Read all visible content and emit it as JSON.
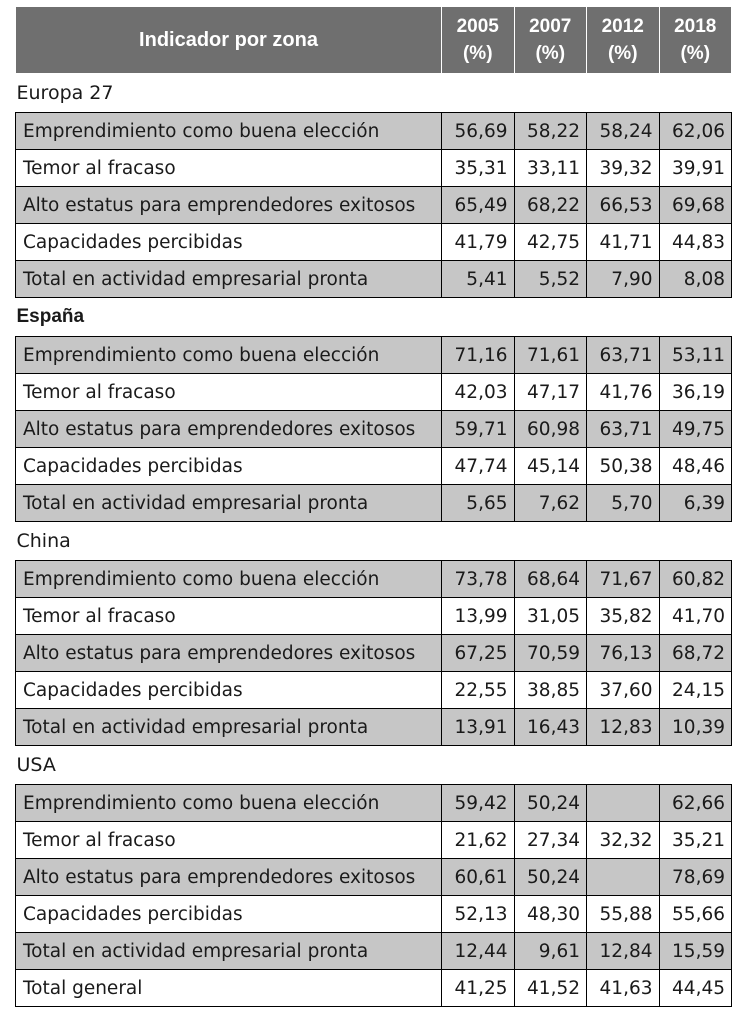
{
  "header": {
    "label": "Indicador por zona",
    "years": [
      {
        "year": "2005",
        "unit": "(%)"
      },
      {
        "year": "2007",
        "unit": "(%)"
      },
      {
        "year": "2012",
        "unit": "(%)"
      },
      {
        "year": "2018",
        "unit": "(%)"
      }
    ]
  },
  "sections": [
    {
      "name": "Europa 27",
      "bold": false,
      "rows": [
        {
          "label": "Emprendimiento como buena elección",
          "values": [
            "56,69",
            "58,22",
            "58,24",
            "62,06"
          ]
        },
        {
          "label": "Temor al fracaso",
          "values": [
            "35,31",
            "33,11",
            "39,32",
            "39,91"
          ]
        },
        {
          "label": "Alto estatus para emprendedores exitosos",
          "values": [
            "65,49",
            "68,22",
            "66,53",
            "69,68"
          ]
        },
        {
          "label": "Capacidades percibidas",
          "values": [
            "41,79",
            "42,75",
            "41,71",
            "44,83"
          ]
        },
        {
          "label": "Total en actividad empresarial pronta",
          "values": [
            "5,41",
            "5,52",
            "7,90",
            "8,08"
          ]
        }
      ]
    },
    {
      "name": "España",
      "bold": true,
      "rows": [
        {
          "label": "Emprendimiento como buena elección",
          "values": [
            "71,16",
            "71,61",
            "63,71",
            "53,11"
          ]
        },
        {
          "label": "Temor al fracaso",
          "values": [
            "42,03",
            "47,17",
            "41,76",
            "36,19"
          ]
        },
        {
          "label": "Alto estatus para emprendedores exitosos",
          "values": [
            "59,71",
            "60,98",
            "63,71",
            "49,75"
          ]
        },
        {
          "label": "Capacidades percibidas",
          "values": [
            "47,74",
            "45,14",
            "50,38",
            "48,46"
          ]
        },
        {
          "label": "Total en actividad empresarial pronta",
          "values": [
            "5,65",
            "7,62",
            "5,70",
            "6,39"
          ]
        }
      ]
    },
    {
      "name": "China",
      "bold": false,
      "rows": [
        {
          "label": "Emprendimiento como buena elección",
          "values": [
            "73,78",
            "68,64",
            "71,67",
            "60,82"
          ]
        },
        {
          "label": "Temor al fracaso",
          "values": [
            "13,99",
            "31,05",
            "35,82",
            "41,70"
          ]
        },
        {
          "label": "Alto estatus para emprendedores exitosos",
          "values": [
            "67,25",
            "70,59",
            "76,13",
            "68,72"
          ]
        },
        {
          "label": "Capacidades percibidas",
          "values": [
            "22,55",
            "38,85",
            "37,60",
            "24,15"
          ]
        },
        {
          "label": "Total en actividad empresarial pronta",
          "values": [
            "13,91",
            "16,43",
            "12,83",
            "10,39"
          ]
        }
      ]
    },
    {
      "name": "USA",
      "bold": false,
      "rows": [
        {
          "label": "Emprendimiento como buena elección",
          "values": [
            "59,42",
            "50,24",
            "",
            "62,66"
          ]
        },
        {
          "label": "Temor al fracaso",
          "values": [
            "21,62",
            "27,34",
            "32,32",
            "35,21"
          ]
        },
        {
          "label": "Alto estatus para emprendedores exitosos",
          "values": [
            "60,61",
            "50,24",
            "",
            "78,69"
          ]
        },
        {
          "label": "Capacidades percibidas",
          "values": [
            "52,13",
            "48,30",
            "55,88",
            "55,66"
          ]
        },
        {
          "label": "Total en actividad empresarial pronta",
          "values": [
            "12,44",
            "9,61",
            "12,84",
            "15,59"
          ]
        }
      ]
    }
  ],
  "total": {
    "label": "Total general",
    "values": [
      "41,25",
      "41,52",
      "41,63",
      "44,45"
    ]
  }
}
